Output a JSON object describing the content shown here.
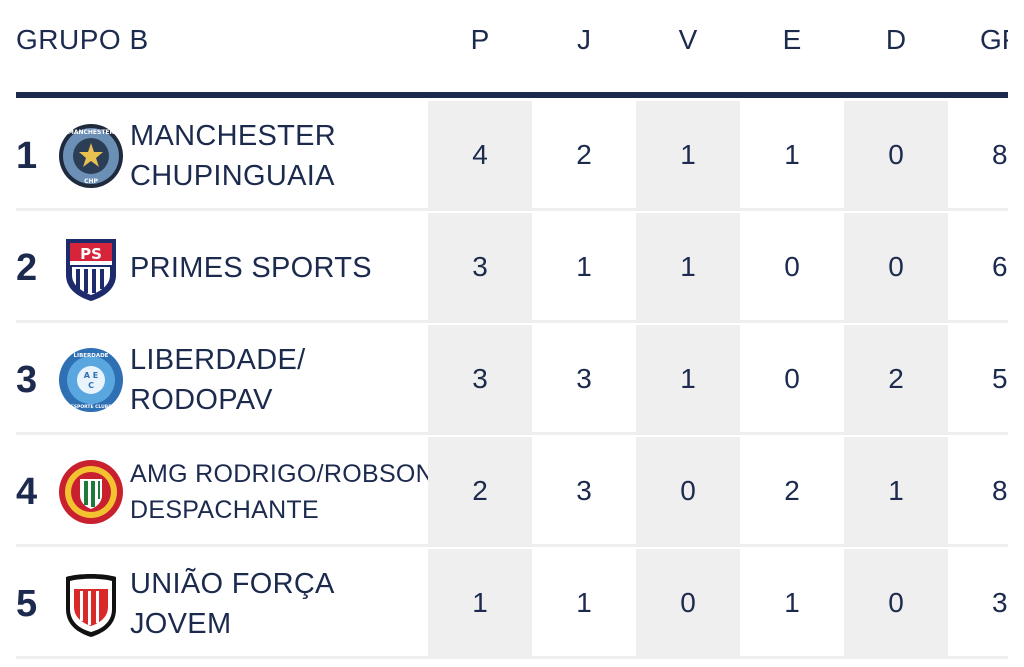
{
  "group_title": "GRUPO B",
  "columns": [
    "P",
    "J",
    "V",
    "E",
    "D",
    "GP"
  ],
  "rows": [
    {
      "rank": "1",
      "name_line1": "MANCHESTER",
      "name_line2": "CHUPINGUAIA",
      "logo_text": "MANCHESTER",
      "logo_sub": "CHP",
      "stats": [
        "4",
        "2",
        "1",
        "1",
        "0",
        "8"
      ]
    },
    {
      "rank": "2",
      "name_line1": "PRIMES SPORTS",
      "name_line2": "",
      "logo_text": "PS",
      "logo_sub": "",
      "stats": [
        "3",
        "1",
        "1",
        "0",
        "0",
        "6"
      ]
    },
    {
      "rank": "3",
      "name_line1": "LIBERDADE/",
      "name_line2": "RODOPAV",
      "logo_text": "LIBERDADE",
      "logo_sub": "ESPORTE CLUBE",
      "stats": [
        "3",
        "3",
        "1",
        "0",
        "2",
        "5"
      ]
    },
    {
      "rank": "4",
      "name_line1": "AMG RODRIGO/ROBSON",
      "name_line2": "DESPACHANTE",
      "logo_text": "",
      "logo_sub": "",
      "stats": [
        "2",
        "3",
        "0",
        "2",
        "1",
        "8"
      ]
    },
    {
      "rank": "5",
      "name_line1": "UNIÃO FORÇA",
      "name_line2": "JOVEM",
      "logo_text": "",
      "logo_sub": "",
      "stats": [
        "1",
        "1",
        "0",
        "1",
        "0",
        "3"
      ]
    }
  ],
  "colors": {
    "navy": "#1c2a4e",
    "shade": "#efefef",
    "separator": "#eeeeee"
  }
}
